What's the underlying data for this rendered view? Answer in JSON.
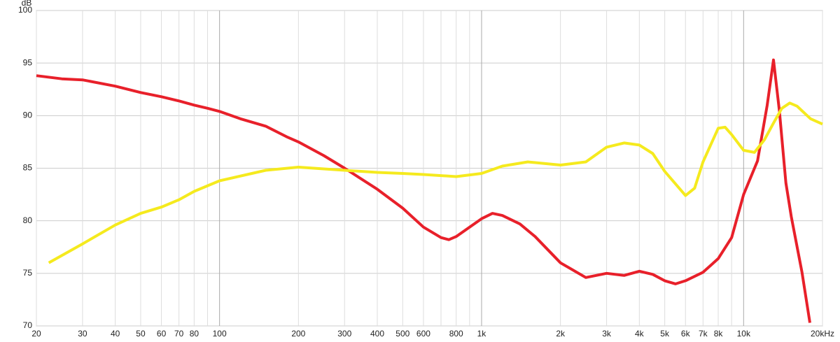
{
  "chart_data": {
    "type": "line",
    "y_label": "dB",
    "xscale": "log",
    "grid": true,
    "xlim": [
      20,
      20000
    ],
    "ylim": [
      70,
      100
    ],
    "yticks": [
      70,
      75,
      80,
      85,
      90,
      95,
      100
    ],
    "xticks": [
      20,
      30,
      40,
      50,
      60,
      70,
      80,
      100,
      200,
      300,
      400,
      500,
      600,
      800,
      {
        "value": 1000,
        "label": "1k"
      },
      {
        "value": 2000,
        "label": "2k"
      },
      {
        "value": 3000,
        "label": "3k"
      },
      {
        "value": 4000,
        "label": "4k"
      },
      {
        "value": 5000,
        "label": "5k"
      },
      {
        "value": 6000,
        "label": "6k"
      },
      {
        "value": 7000,
        "label": "7k"
      },
      {
        "value": 8000,
        "label": "8k"
      },
      {
        "value": 10000,
        "label": "10k"
      },
      {
        "value": 20000,
        "label": "20kHz"
      }
    ],
    "x_minor_ticks": [
      90,
      700,
      900,
      9000
    ],
    "series": [
      {
        "color": "#e8202a",
        "x": [
          20,
          25,
          30,
          40,
          50,
          60,
          70,
          80,
          90,
          100,
          120,
          150,
          180,
          200,
          250,
          300,
          400,
          500,
          600,
          700,
          750,
          800,
          900,
          1000,
          1100,
          1200,
          1400,
          1600,
          2000,
          2500,
          3000,
          3500,
          4000,
          4500,
          5000,
          5500,
          6000,
          7000,
          8000,
          9000,
          10000,
          11300,
          12300,
          13000,
          13700,
          14500,
          15200,
          16700,
          17900
        ],
        "values": [
          93.8,
          93.5,
          93.4,
          92.8,
          92.2,
          91.8,
          91.4,
          91.0,
          90.7,
          90.4,
          89.7,
          89.0,
          88.0,
          87.5,
          86.2,
          85.0,
          83.0,
          81.2,
          79.4,
          78.4,
          78.2,
          78.5,
          79.4,
          80.2,
          80.7,
          80.5,
          79.7,
          78.5,
          76.0,
          74.6,
          75.0,
          74.8,
          75.2,
          74.9,
          74.3,
          74.0,
          74.3,
          75.1,
          76.4,
          78.4,
          82.5,
          85.7,
          91.0,
          95.3,
          90.4,
          83.6,
          80.4,
          75.1,
          70.3
        ]
      },
      {
        "color": "#f5ea1e",
        "x": [
          22.3,
          30,
          40,
          50,
          60,
          70,
          80,
          100,
          150,
          200,
          300,
          400,
          500,
          600,
          800,
          1000,
          1200,
          1500,
          2000,
          2500,
          3000,
          3500,
          4000,
          4500,
          5000,
          6000,
          6500,
          7000,
          8000,
          8500,
          9000,
          10000,
          11000,
          12000,
          13000,
          14000,
          15000,
          16000,
          18000,
          20000
        ],
        "values": [
          76.0,
          77.8,
          79.6,
          80.7,
          81.3,
          82.0,
          82.8,
          83.8,
          84.8,
          85.1,
          84.8,
          84.6,
          84.5,
          84.4,
          84.2,
          84.5,
          85.2,
          85.6,
          85.3,
          85.6,
          87.0,
          87.4,
          87.2,
          86.4,
          84.7,
          82.4,
          83.1,
          85.6,
          88.8,
          88.9,
          88.2,
          86.7,
          86.5,
          87.7,
          89.3,
          90.7,
          91.2,
          90.9,
          89.7,
          89.2
        ]
      }
    ]
  }
}
